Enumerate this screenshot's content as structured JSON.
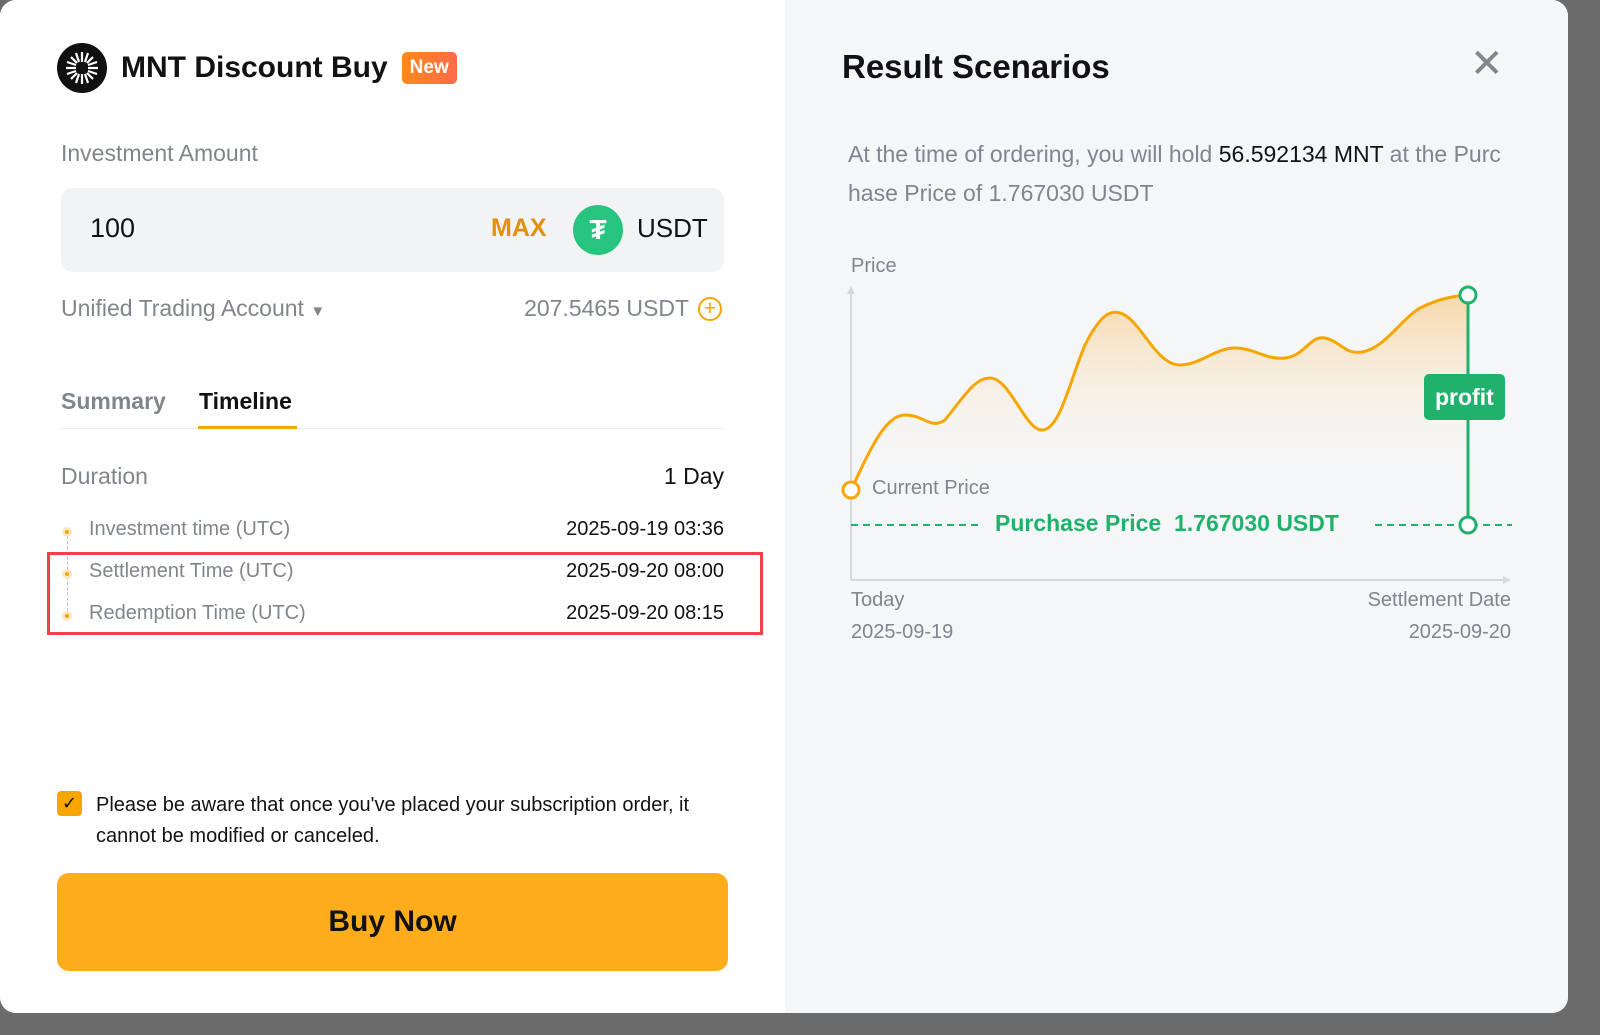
{
  "product": {
    "title": "MNT Discount Buy",
    "badge": "New"
  },
  "investment": {
    "label": "Investment Amount",
    "amount": "100",
    "max_label": "MAX",
    "currency": "USDT",
    "account": "Unified Trading Account",
    "balance": "207.5465 USDT"
  },
  "tabs": [
    {
      "label": "Summary",
      "active": false
    },
    {
      "label": "Timeline",
      "active": true
    }
  ],
  "timeline": {
    "duration_label": "Duration",
    "duration_value": "1 Day",
    "items": [
      {
        "label": "Investment time (UTC)",
        "value": "2025-09-19 03:36"
      },
      {
        "label": "Settlement Time (UTC)",
        "value": "2025-09-20 08:00"
      },
      {
        "label": "Redemption Time (UTC)",
        "value": "2025-09-20 08:15"
      }
    ]
  },
  "notice": {
    "checked": true,
    "text": "Please be aware that once you've placed your subscription order, it cannot be modified or canceled."
  },
  "buy_label": "Buy Now",
  "scenarios": {
    "title": "Result Scenarios",
    "desc_pre": "At the time of ordering, you will hold ",
    "hold": "56.592134 MNT",
    "desc_post": " at the Purchase Price of 1.767030 USDT",
    "chart": {
      "y_label": "Price",
      "current_price": "Current Price",
      "purchase_label": "Purchase Price",
      "purchase_value": "1.767030 USDT",
      "profit": "profit",
      "start_label": "Today",
      "start_date": "2025-09-19",
      "end_label": "Settlement Date",
      "end_date": "2025-09-20"
    }
  },
  "colors": {
    "accent": "#f7a600",
    "green": "#20b26c",
    "highlight": "#f0404a"
  }
}
